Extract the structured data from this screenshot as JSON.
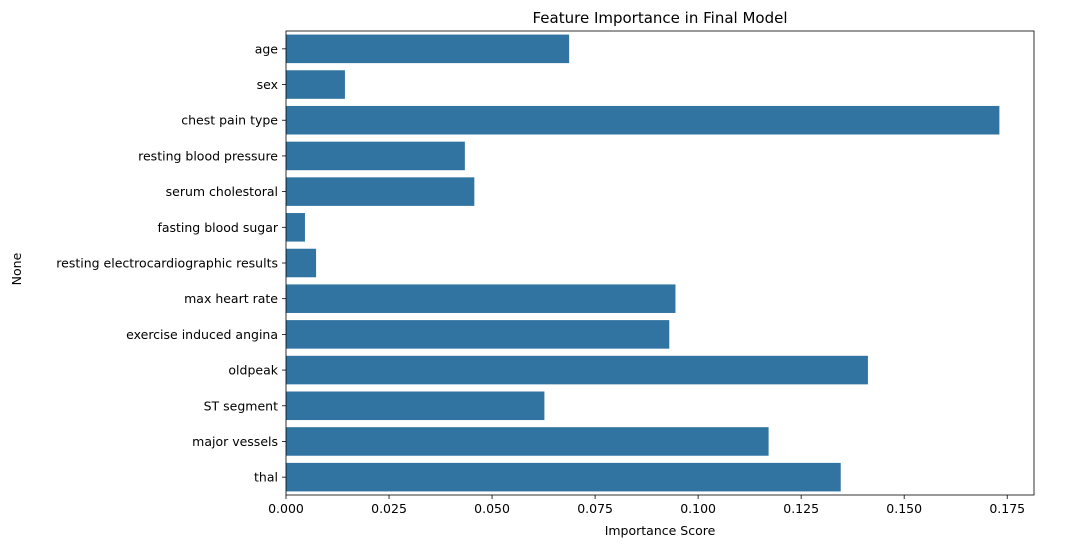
{
  "chart_data": {
    "type": "bar",
    "orientation": "horizontal",
    "title": "Feature Importance in Final Model",
    "xlabel": "Importance Score",
    "ylabel": "None",
    "categories": [
      "age",
      "sex ",
      "chest pain type",
      "resting blood pressure",
      "serum cholestoral",
      "fasting blood sugar",
      "resting electrocardiographic results",
      "max heart rate",
      "exercise induced angina",
      "oldpeak",
      "ST segment",
      "major vessels",
      "thal"
    ],
    "values": [
      0.0687,
      0.0143,
      0.1731,
      0.0434,
      0.0457,
      0.0046,
      0.0073,
      0.0945,
      0.093,
      0.1412,
      0.0627,
      0.1171,
      0.1346
    ],
    "xlim": [
      0,
      0.1815
    ],
    "xticks": [
      "0.000",
      "0.025",
      "0.050",
      "0.075",
      "0.100",
      "0.125",
      "0.150",
      "0.175"
    ],
    "grid": false,
    "bar_color": "#3274a1"
  }
}
